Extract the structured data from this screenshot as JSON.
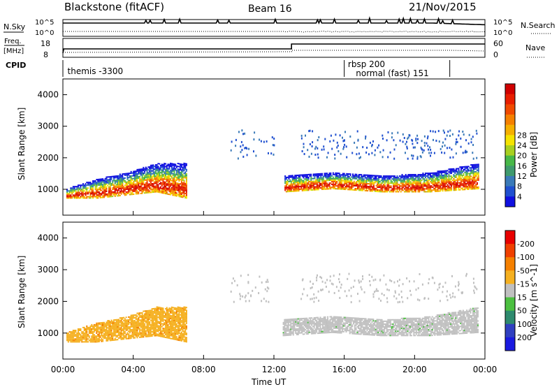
{
  "header": {
    "station": "Blackstone (fitACF)",
    "beam": "Beam 16",
    "date": "21/Nov/2015"
  },
  "side_labels": {
    "nsky": "N.Sky",
    "freq": "Freq.",
    "freq_unit": "[MHz]",
    "cpid": "CPID",
    "nsearch": "N.Search",
    "nave": "Nave"
  },
  "nsky_ticks": [
    "10^5",
    "10^0"
  ],
  "nsearch_ticks": [
    "10^5",
    "10^0"
  ],
  "freq_ticks": [
    "18",
    "8"
  ],
  "nave_ticks": [
    "60",
    "0"
  ],
  "cpid_labels": [
    {
      "text": "themis -3300",
      "hour": 0.1
    },
    {
      "text": "rbsp 200",
      "hour": 16.05
    },
    {
      "text": "normal (fast) 151",
      "hour": 16.5
    }
  ],
  "cpid_boundaries": [
    16.0,
    22.0
  ],
  "chart_data": [
    {
      "type": "heatmap",
      "name": "power",
      "ylabel": "Slant Range [km]",
      "xlabel": "",
      "xlim": [
        0,
        24
      ],
      "ylim": [
        180,
        4500
      ],
      "yticks": [
        1000,
        2000,
        3000,
        4000
      ],
      "colorbar": {
        "label": "Power [dB]",
        "ticks": [
          "4",
          "8",
          "12",
          "16",
          "20",
          "24",
          "28"
        ],
        "colors": [
          "#1010e0",
          "#2050d0",
          "#3a7ab8",
          "#3f9a6e",
          "#48b848",
          "#a8d020",
          "#f5e300",
          "#f5b000",
          "#f58000",
          "#f04a00",
          "#e81e00",
          "#d00000"
        ]
      },
      "regions": [
        {
          "start": 0.2,
          "end": 7.0,
          "lower": [
            700,
            700,
            800,
            900,
            700
          ],
          "upper": [
            1000,
            1300,
            1500,
            1800,
            1800
          ],
          "peak": 28
        },
        {
          "start": 12.6,
          "end": 23.6,
          "lower": [
            900,
            1000,
            900,
            900,
            1000
          ],
          "upper": [
            1400,
            1500,
            1400,
            1500,
            1800
          ],
          "peak": 28
        }
      ]
    },
    {
      "type": "heatmap",
      "name": "velocity",
      "ylabel": "Slant Range [km]",
      "xlabel": "Time UT",
      "xlim": [
        0,
        24
      ],
      "ylim": [
        180,
        4500
      ],
      "xticks": [
        "00:00",
        "04:00",
        "08:00",
        "12:00",
        "16:00",
        "20:00",
        "00:00"
      ],
      "yticks": [
        1000,
        2000,
        3000,
        4000
      ],
      "colorbar": {
        "label": "Velocity [m s^-1]",
        "ticks": [
          "200",
          "100",
          "50",
          "15",
          "-15",
          "-50",
          "-100",
          "-200"
        ],
        "colors": [
          "#1a1ae0",
          "#3040c0",
          "#2e8a6e",
          "#4cc040",
          "#c0c0c0",
          "#f5b020",
          "#f58000",
          "#f04000",
          "#e80000"
        ]
      },
      "regions": [
        {
          "start": 0.2,
          "end": 7.0,
          "value": -30
        },
        {
          "start": 12.5,
          "end": 23.6,
          "value": 0
        }
      ]
    }
  ]
}
